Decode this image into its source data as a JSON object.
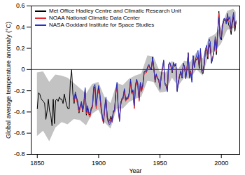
{
  "chart_data": {
    "type": "line",
    "xlabel": "Year",
    "ylabel": "Global average temperature anomaly (°C)",
    "x": [
      1850,
      1851,
      1852,
      1853,
      1854,
      1855,
      1856,
      1857,
      1858,
      1859,
      1860,
      1861,
      1862,
      1863,
      1864,
      1865,
      1866,
      1867,
      1868,
      1869,
      1870,
      1871,
      1872,
      1873,
      1874,
      1875,
      1876,
      1877,
      1878,
      1879,
      1880,
      1881,
      1882,
      1883,
      1884,
      1885,
      1886,
      1887,
      1888,
      1889,
      1890,
      1891,
      1892,
      1893,
      1894,
      1895,
      1896,
      1897,
      1898,
      1899,
      1900,
      1901,
      1902,
      1903,
      1904,
      1905,
      1906,
      1907,
      1908,
      1909,
      1910,
      1911,
      1912,
      1913,
      1914,
      1915,
      1916,
      1917,
      1918,
      1919,
      1920,
      1921,
      1922,
      1923,
      1924,
      1925,
      1926,
      1927,
      1928,
      1929,
      1930,
      1931,
      1932,
      1933,
      1934,
      1935,
      1936,
      1937,
      1938,
      1939,
      1940,
      1941,
      1942,
      1943,
      1944,
      1945,
      1946,
      1947,
      1948,
      1949,
      1950,
      1951,
      1952,
      1953,
      1954,
      1955,
      1956,
      1957,
      1958,
      1959,
      1960,
      1961,
      1962,
      1963,
      1964,
      1965,
      1966,
      1967,
      1968,
      1969,
      1970,
      1971,
      1972,
      1973,
      1974,
      1975,
      1976,
      1977,
      1978,
      1979,
      1980,
      1981,
      1982,
      1983,
      1984,
      1985,
      1986,
      1987,
      1988,
      1989,
      1990,
      1991,
      1992,
      1993,
      1994,
      1995,
      1996,
      1997,
      1998,
      1999,
      2000,
      2001,
      2002,
      2003,
      2004,
      2005,
      2006,
      2007,
      2008,
      2009,
      2010,
      2011,
      2012
    ],
    "series": [
      {
        "name": "Met Office Hadley Centre and Climatic Research Unit",
        "color": "#000000",
        "values": [
          -0.37,
          -0.22,
          -0.23,
          -0.27,
          -0.29,
          -0.3,
          -0.32,
          -0.47,
          -0.39,
          -0.28,
          -0.39,
          -0.43,
          -0.53,
          -0.28,
          -0.51,
          -0.29,
          -0.28,
          -0.3,
          -0.26,
          -0.28,
          -0.28,
          -0.32,
          -0.23,
          -0.29,
          -0.34,
          -0.37,
          -0.37,
          -0.1,
          0.0,
          -0.23,
          -0.32,
          -0.23,
          -0.27,
          -0.32,
          -0.41,
          -0.35,
          -0.32,
          -0.4,
          -0.33,
          -0.18,
          -0.43,
          -0.36,
          -0.42,
          -0.43,
          -0.36,
          -0.35,
          -0.18,
          -0.16,
          -0.35,
          -0.24,
          -0.17,
          -0.25,
          -0.36,
          -0.45,
          -0.49,
          -0.36,
          -0.28,
          -0.44,
          -0.49,
          -0.48,
          -0.44,
          -0.48,
          -0.39,
          -0.38,
          -0.21,
          -0.14,
          -0.37,
          -0.47,
          -0.31,
          -0.28,
          -0.27,
          -0.19,
          -0.29,
          -0.27,
          -0.27,
          -0.22,
          -0.11,
          -0.22,
          -0.2,
          -0.36,
          -0.16,
          -0.1,
          -0.16,
          -0.29,
          -0.13,
          -0.2,
          -0.15,
          -0.03,
          -0.01,
          -0.02,
          0.02,
          0.03,
          0.02,
          0.0,
          0.12,
          0.02,
          -0.12,
          -0.05,
          -0.08,
          -0.1,
          -0.17,
          -0.07,
          0.01,
          0.08,
          -0.13,
          -0.14,
          -0.19,
          0.05,
          0.06,
          0.03,
          -0.03,
          0.06,
          0.03,
          0.05,
          -0.2,
          -0.11,
          -0.06,
          -0.02,
          -0.08,
          0.05,
          0.03,
          -0.08,
          0.01,
          0.16,
          -0.07,
          -0.01,
          -0.1,
          0.13,
          0.02,
          0.09,
          0.09,
          0.12,
          0.01,
          0.18,
          -0.02,
          -0.04,
          0.03,
          0.18,
          0.19,
          0.1,
          0.25,
          0.2,
          0.06,
          0.11,
          0.17,
          0.28,
          0.14,
          0.35,
          0.55,
          0.3,
          0.28,
          0.41,
          0.46,
          0.47,
          0.45,
          0.48,
          0.42,
          0.4,
          0.33,
          0.44,
          0.5,
          0.36,
          0.45
        ],
        "band": {
          "x": [
            1850,
            1855,
            1860,
            1865,
            1870,
            1875,
            1880,
            1885,
            1890,
            1895,
            1900,
            1905,
            1910,
            1915,
            1920,
            1925,
            1930,
            1935,
            1940,
            1945,
            1950,
            1955,
            1960,
            1965,
            1970,
            1975,
            1980,
            1985,
            1990,
            1995,
            2000,
            2005,
            2010,
            2012
          ],
          "lower": [
            -0.63,
            -0.58,
            -0.68,
            -0.55,
            -0.5,
            -0.52,
            -0.47,
            -0.48,
            -0.53,
            -0.42,
            -0.38,
            -0.5,
            -0.56,
            -0.37,
            -0.37,
            -0.31,
            -0.28,
            -0.26,
            -0.11,
            -0.12,
            -0.22,
            -0.21,
            -0.08,
            -0.16,
            -0.08,
            -0.09,
            0.0,
            -0.06,
            0.14,
            0.17,
            0.24,
            0.37,
            0.39,
            0.36
          ],
          "upper": [
            -0.03,
            -0.02,
            -0.12,
            -0.05,
            -0.06,
            -0.08,
            -0.13,
            -0.18,
            -0.23,
            -0.14,
            -0.12,
            -0.26,
            -0.32,
            -0.13,
            -0.15,
            -0.09,
            -0.06,
            -0.04,
            0.13,
            0.12,
            -0.02,
            -0.03,
            0.08,
            0.0,
            0.08,
            0.07,
            0.16,
            0.1,
            0.3,
            0.33,
            0.4,
            0.55,
            0.57,
            0.54
          ]
        }
      },
      {
        "name": "NOAA National Climatic Data Center",
        "color": "#e8262b",
        "values": [
          null,
          null,
          null,
          null,
          null,
          null,
          null,
          null,
          null,
          null,
          null,
          null,
          null,
          null,
          null,
          null,
          null,
          null,
          null,
          null,
          null,
          null,
          null,
          null,
          null,
          null,
          null,
          null,
          null,
          null,
          -0.3,
          -0.25,
          -0.28,
          -0.34,
          -0.4,
          -0.36,
          -0.33,
          -0.39,
          -0.32,
          -0.2,
          -0.42,
          -0.38,
          -0.43,
          -0.45,
          -0.38,
          -0.36,
          -0.2,
          -0.18,
          -0.37,
          -0.25,
          -0.19,
          -0.24,
          -0.38,
          -0.47,
          -0.51,
          -0.38,
          -0.3,
          -0.46,
          -0.5,
          -0.5,
          -0.46,
          -0.5,
          -0.41,
          -0.4,
          -0.23,
          -0.17,
          -0.39,
          -0.48,
          -0.33,
          -0.29,
          -0.28,
          -0.21,
          -0.3,
          -0.28,
          -0.28,
          -0.24,
          -0.13,
          -0.23,
          -0.21,
          -0.37,
          -0.17,
          -0.11,
          -0.17,
          -0.3,
          -0.14,
          -0.21,
          -0.16,
          -0.05,
          -0.03,
          -0.03,
          0.01,
          0.04,
          0.01,
          0.01,
          0.1,
          0.01,
          -0.11,
          -0.06,
          -0.08,
          -0.11,
          -0.18,
          -0.06,
          0.0,
          0.07,
          -0.12,
          -0.15,
          -0.2,
          0.04,
          0.06,
          0.02,
          -0.02,
          0.05,
          0.04,
          0.05,
          -0.19,
          -0.12,
          -0.05,
          -0.03,
          -0.07,
          0.06,
          0.02,
          -0.07,
          0.02,
          0.15,
          -0.06,
          -0.02,
          -0.09,
          0.12,
          0.03,
          0.1,
          0.1,
          0.13,
          0.03,
          0.17,
          0.0,
          -0.02,
          0.05,
          0.17,
          0.2,
          0.12,
          0.25,
          0.22,
          0.08,
          0.12,
          0.18,
          0.29,
          0.17,
          0.36,
          0.53,
          0.31,
          0.3,
          0.43,
          0.47,
          0.48,
          0.46,
          0.51,
          0.46,
          0.45,
          0.37,
          0.47,
          0.52,
          0.4,
          0.44
        ]
      },
      {
        "name": "NASA Goddard Institute for Space Studies",
        "color": "#2432c8",
        "values": [
          null,
          null,
          null,
          null,
          null,
          null,
          null,
          null,
          null,
          null,
          null,
          null,
          null,
          null,
          null,
          null,
          null,
          null,
          null,
          null,
          null,
          null,
          null,
          null,
          null,
          null,
          null,
          null,
          null,
          null,
          -0.28,
          -0.21,
          -0.26,
          -0.3,
          -0.38,
          -0.34,
          -0.3,
          -0.38,
          -0.3,
          -0.17,
          -0.4,
          -0.34,
          -0.4,
          -0.42,
          -0.37,
          -0.33,
          -0.16,
          -0.14,
          -0.34,
          -0.22,
          -0.15,
          -0.22,
          -0.34,
          -0.44,
          -0.5,
          -0.34,
          -0.26,
          -0.45,
          -0.51,
          -0.52,
          -0.48,
          -0.49,
          -0.4,
          -0.39,
          -0.22,
          -0.12,
          -0.36,
          -0.49,
          -0.34,
          -0.27,
          -0.25,
          -0.18,
          -0.28,
          -0.26,
          -0.26,
          -0.21,
          -0.09,
          -0.21,
          -0.19,
          -0.34,
          -0.14,
          -0.09,
          -0.13,
          -0.27,
          -0.12,
          -0.18,
          -0.14,
          -0.02,
          -0.02,
          -0.01,
          0.03,
          0.05,
          0.0,
          0.02,
          0.11,
          0.0,
          -0.1,
          -0.04,
          -0.09,
          -0.09,
          -0.19,
          -0.05,
          0.02,
          0.09,
          -0.14,
          -0.16,
          -0.21,
          0.04,
          0.07,
          0.03,
          -0.01,
          0.07,
          0.04,
          0.06,
          -0.21,
          -0.13,
          -0.06,
          -0.01,
          -0.07,
          0.06,
          0.03,
          -0.09,
          0.0,
          0.15,
          -0.08,
          -0.03,
          -0.12,
          0.13,
          0.02,
          0.1,
          0.14,
          0.18,
          0.03,
          0.2,
          0.0,
          -0.01,
          0.05,
          0.19,
          0.23,
          0.14,
          0.29,
          0.26,
          0.06,
          0.11,
          0.17,
          0.31,
          0.19,
          0.33,
          0.49,
          0.29,
          0.3,
          0.42,
          0.48,
          0.48,
          0.43,
          0.53,
          0.47,
          0.5,
          0.38,
          0.48,
          0.54,
          0.41,
          0.46
        ]
      }
    ],
    "xlim": [
      1845,
      2015
    ],
    "xticks": [
      1850,
      1900,
      1950,
      2000
    ],
    "ylim": [
      -0.8,
      0.6
    ],
    "yticks": [
      -0.8,
      -0.6,
      -0.4,
      -0.2,
      0,
      0.2,
      0.4,
      0.6
    ],
    "grid": false,
    "legend": "upper left"
  }
}
